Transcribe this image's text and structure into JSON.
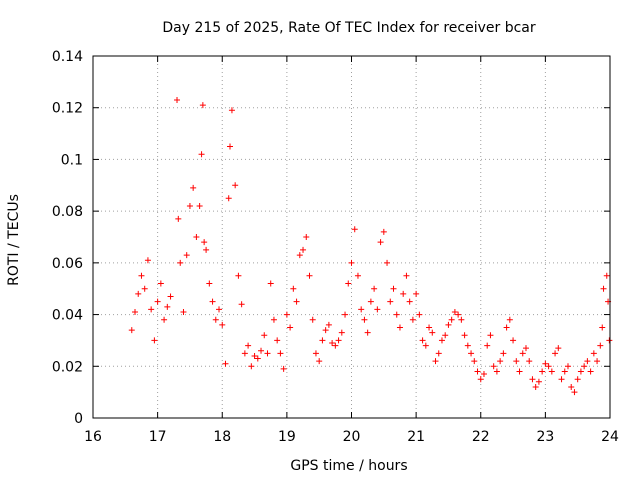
{
  "chart_data": {
    "type": "scatter",
    "title": "Day 215 of 2025, Rate Of TEC Index for receiver bcar",
    "xlabel": "GPS time / hours",
    "ylabel": "ROTI / TECUs",
    "xlim": [
      16,
      24
    ],
    "ylim": [
      0,
      0.14
    ],
    "xticks": [
      16,
      17,
      18,
      19,
      20,
      21,
      22,
      23,
      24
    ],
    "yticks": [
      0,
      0.02,
      0.04,
      0.06,
      0.08,
      0.1,
      0.12,
      0.14
    ],
    "ytick_labels": [
      "0",
      "0.02",
      "0.04",
      "0.06",
      "0.08",
      "0.1",
      "0.12",
      "0.14"
    ],
    "grid": true,
    "marker": "+",
    "series": [
      {
        "name": "ROTI",
        "color": "#ff0000",
        "points": [
          [
            16.6,
            0.034
          ],
          [
            16.65,
            0.041
          ],
          [
            16.7,
            0.048
          ],
          [
            16.75,
            0.055
          ],
          [
            16.8,
            0.05
          ],
          [
            16.85,
            0.061
          ],
          [
            16.9,
            0.042
          ],
          [
            16.95,
            0.03
          ],
          [
            17.0,
            0.045
          ],
          [
            17.05,
            0.052
          ],
          [
            17.1,
            0.038
          ],
          [
            17.15,
            0.043
          ],
          [
            17.2,
            0.047
          ],
          [
            17.3,
            0.123
          ],
          [
            17.32,
            0.077
          ],
          [
            17.35,
            0.06
          ],
          [
            17.4,
            0.041
          ],
          [
            17.45,
            0.063
          ],
          [
            17.5,
            0.082
          ],
          [
            17.55,
            0.089
          ],
          [
            17.6,
            0.07
          ],
          [
            17.65,
            0.082
          ],
          [
            17.68,
            0.102
          ],
          [
            17.7,
            0.121
          ],
          [
            17.72,
            0.068
          ],
          [
            17.75,
            0.065
          ],
          [
            17.8,
            0.052
          ],
          [
            17.85,
            0.045
          ],
          [
            17.9,
            0.038
          ],
          [
            17.95,
            0.042
          ],
          [
            18.0,
            0.036
          ],
          [
            18.05,
            0.021
          ],
          [
            18.1,
            0.085
          ],
          [
            18.12,
            0.105
          ],
          [
            18.15,
            0.119
          ],
          [
            18.2,
            0.09
          ],
          [
            18.25,
            0.055
          ],
          [
            18.3,
            0.044
          ],
          [
            18.35,
            0.025
          ],
          [
            18.4,
            0.028
          ],
          [
            18.45,
            0.02
          ],
          [
            18.5,
            0.024
          ],
          [
            18.55,
            0.023
          ],
          [
            18.6,
            0.026
          ],
          [
            18.65,
            0.032
          ],
          [
            18.7,
            0.025
          ],
          [
            18.75,
            0.052
          ],
          [
            18.8,
            0.038
          ],
          [
            18.85,
            0.03
          ],
          [
            18.9,
            0.025
          ],
          [
            18.95,
            0.019
          ],
          [
            19.0,
            0.04
          ],
          [
            19.05,
            0.035
          ],
          [
            19.1,
            0.05
          ],
          [
            19.15,
            0.045
          ],
          [
            19.2,
            0.063
          ],
          [
            19.25,
            0.065
          ],
          [
            19.3,
            0.07
          ],
          [
            19.35,
            0.055
          ],
          [
            19.4,
            0.038
          ],
          [
            19.45,
            0.025
          ],
          [
            19.5,
            0.022
          ],
          [
            19.55,
            0.03
          ],
          [
            19.6,
            0.034
          ],
          [
            19.65,
            0.036
          ],
          [
            19.7,
            0.029
          ],
          [
            19.75,
            0.028
          ],
          [
            19.8,
            0.03
          ],
          [
            19.85,
            0.033
          ],
          [
            19.9,
            0.04
          ],
          [
            19.95,
            0.052
          ],
          [
            20.0,
            0.06
          ],
          [
            20.05,
            0.073
          ],
          [
            20.1,
            0.055
          ],
          [
            20.15,
            0.042
          ],
          [
            20.2,
            0.038
          ],
          [
            20.25,
            0.033
          ],
          [
            20.3,
            0.045
          ],
          [
            20.35,
            0.05
          ],
          [
            20.4,
            0.042
          ],
          [
            20.45,
            0.068
          ],
          [
            20.5,
            0.072
          ],
          [
            20.55,
            0.06
          ],
          [
            20.6,
            0.045
          ],
          [
            20.65,
            0.05
          ],
          [
            20.7,
            0.04
          ],
          [
            20.75,
            0.035
          ],
          [
            20.8,
            0.048
          ],
          [
            20.85,
            0.055
          ],
          [
            20.9,
            0.045
          ],
          [
            20.95,
            0.038
          ],
          [
            21.0,
            0.048
          ],
          [
            21.05,
            0.04
          ],
          [
            21.1,
            0.03
          ],
          [
            21.15,
            0.028
          ],
          [
            21.2,
            0.035
          ],
          [
            21.25,
            0.033
          ],
          [
            21.3,
            0.022
          ],
          [
            21.35,
            0.025
          ],
          [
            21.4,
            0.03
          ],
          [
            21.45,
            0.032
          ],
          [
            21.5,
            0.036
          ],
          [
            21.55,
            0.038
          ],
          [
            21.6,
            0.041
          ],
          [
            21.65,
            0.04
          ],
          [
            21.7,
            0.038
          ],
          [
            21.75,
            0.032
          ],
          [
            21.8,
            0.028
          ],
          [
            21.85,
            0.025
          ],
          [
            21.9,
            0.022
          ],
          [
            21.95,
            0.018
          ],
          [
            22.0,
            0.015
          ],
          [
            22.05,
            0.017
          ],
          [
            22.1,
            0.028
          ],
          [
            22.15,
            0.032
          ],
          [
            22.2,
            0.02
          ],
          [
            22.25,
            0.018
          ],
          [
            22.3,
            0.022
          ],
          [
            22.35,
            0.025
          ],
          [
            22.4,
            0.035
          ],
          [
            22.45,
            0.038
          ],
          [
            22.5,
            0.03
          ],
          [
            22.55,
            0.022
          ],
          [
            22.6,
            0.018
          ],
          [
            22.65,
            0.025
          ],
          [
            22.7,
            0.027
          ],
          [
            22.75,
            0.022
          ],
          [
            22.8,
            0.015
          ],
          [
            22.85,
            0.012
          ],
          [
            22.9,
            0.014
          ],
          [
            22.95,
            0.018
          ],
          [
            23.0,
            0.021
          ],
          [
            23.05,
            0.02
          ],
          [
            23.1,
            0.018
          ],
          [
            23.15,
            0.025
          ],
          [
            23.2,
            0.027
          ],
          [
            23.25,
            0.015
          ],
          [
            23.3,
            0.018
          ],
          [
            23.35,
            0.02
          ],
          [
            23.4,
            0.012
          ],
          [
            23.45,
            0.01
          ],
          [
            23.5,
            0.015
          ],
          [
            23.55,
            0.018
          ],
          [
            23.6,
            0.02
          ],
          [
            23.65,
            0.022
          ],
          [
            23.7,
            0.018
          ],
          [
            23.75,
            0.025
          ],
          [
            23.8,
            0.022
          ],
          [
            23.85,
            0.028
          ],
          [
            23.88,
            0.035
          ],
          [
            23.9,
            0.05
          ],
          [
            23.95,
            0.055
          ],
          [
            23.97,
            0.045
          ],
          [
            23.99,
            0.03
          ]
        ]
      }
    ]
  }
}
